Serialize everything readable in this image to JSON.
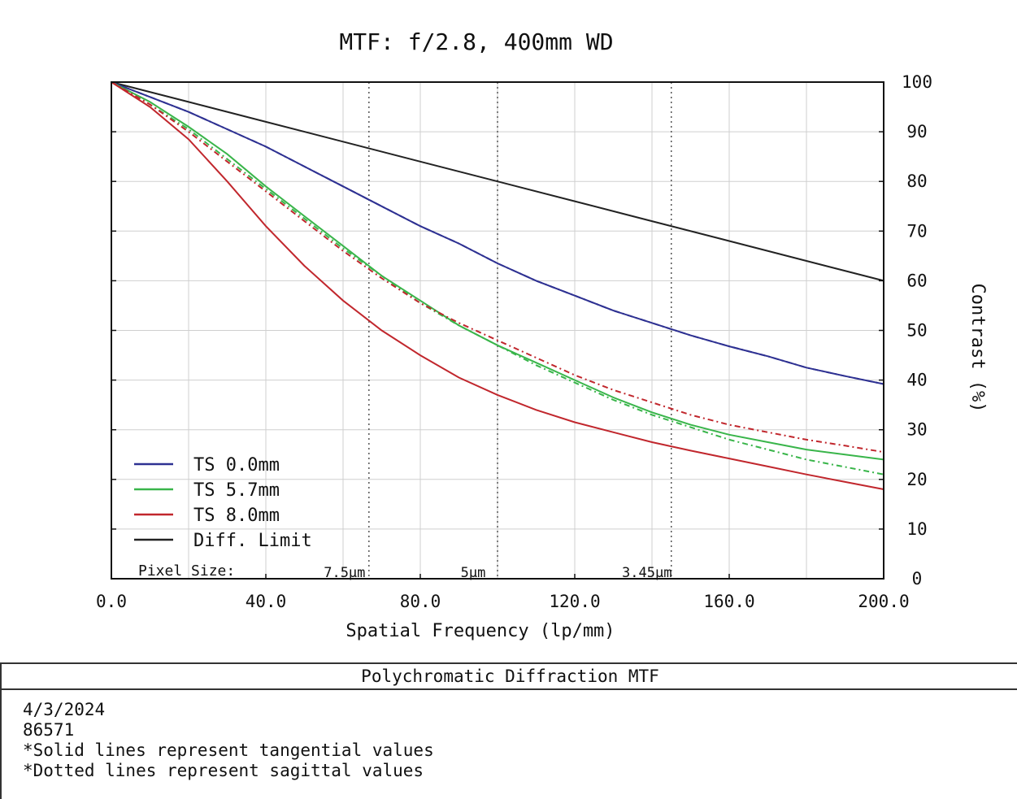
{
  "chart_data": {
    "type": "line",
    "title": "MTF: f/2.8, 400mm WD",
    "xlabel": "Spatial Frequency (lp/mm)",
    "ylabel": "Contrast (%)",
    "xlim": [
      0,
      200
    ],
    "ylim": [
      0,
      100
    ],
    "x_ticks": [
      "0.0",
      "40.0",
      "80.0",
      "120.0",
      "160.0",
      "200.0"
    ],
    "y_ticks": [
      "0",
      "10",
      "20",
      "30",
      "40",
      "50",
      "60",
      "70",
      "80",
      "90",
      "100"
    ],
    "grid": true,
    "legend_position": "bottom-left",
    "pixel_size_label": "Pixel Size:",
    "pixel_markers": [
      {
        "x": 66.7,
        "label": "7.5µm"
      },
      {
        "x": 100,
        "label": "5µm"
      },
      {
        "x": 145,
        "label": "3.45µm"
      }
    ],
    "colors": {
      "blue": "#2e3192",
      "green": "#39b54a",
      "red": "#c1272d",
      "black": "#222222"
    },
    "legend": [
      {
        "label": "TS 0.0mm",
        "color": "#2e3192"
      },
      {
        "label": "TS 5.7mm",
        "color": "#39b54a"
      },
      {
        "label": "TS 8.0mm",
        "color": "#c1272d"
      },
      {
        "label": "Diff. Limit",
        "color": "#222222"
      }
    ],
    "series": [
      {
        "name": "Diff. Limit",
        "color": "#222222",
        "dash": false,
        "x": [
          0,
          20,
          40,
          60,
          80,
          100,
          120,
          140,
          160,
          180,
          200
        ],
        "y": [
          100,
          96,
          92,
          88,
          84,
          80,
          76,
          72,
          68,
          64,
          60
        ]
      },
      {
        "name": "TS 0.0mm",
        "color": "#2e3192",
        "dash": false,
        "x": [
          0,
          10,
          20,
          30,
          40,
          50,
          60,
          70,
          80,
          90,
          100,
          110,
          120,
          130,
          140,
          150,
          160,
          170,
          180,
          190,
          200
        ],
        "y": [
          100,
          97,
          94,
          90.5,
          87,
          83,
          79,
          75,
          71,
          67.5,
          63.5,
          60,
          57,
          54,
          51.5,
          49,
          46.8,
          44.8,
          42.5,
          40.8,
          39.2
        ]
      },
      {
        "name": "TS 0.0mm",
        "color": "#2e3192",
        "dash": true,
        "x": [
          0,
          10,
          20,
          30,
          40,
          50,
          60,
          70,
          80,
          90,
          100,
          110,
          120,
          130,
          140,
          150,
          160,
          170,
          180,
          190,
          200
        ],
        "y": [
          100,
          97,
          94,
          90.5,
          87,
          83,
          79,
          75,
          71,
          67.5,
          63.5,
          60,
          57,
          54,
          51.5,
          49,
          46.8,
          44.8,
          42.5,
          40.8,
          39.2
        ]
      },
      {
        "name": "TS 5.7mm",
        "color": "#39b54a",
        "dash": false,
        "x": [
          0,
          10,
          20,
          30,
          40,
          50,
          60,
          70,
          80,
          90,
          100,
          110,
          120,
          130,
          140,
          150,
          160,
          170,
          180,
          190,
          200
        ],
        "y": [
          100,
          96,
          91,
          85.5,
          79,
          73,
          67,
          61,
          56,
          51,
          47,
          43.5,
          40,
          36.5,
          33.5,
          31,
          29,
          27.5,
          26,
          25,
          24
        ]
      },
      {
        "name": "TS 5.7mm",
        "color": "#39b54a",
        "dash": true,
        "x": [
          0,
          10,
          20,
          30,
          40,
          50,
          60,
          70,
          80,
          90,
          100,
          110,
          120,
          130,
          140,
          150,
          160,
          170,
          180,
          190,
          200
        ],
        "y": [
          100,
          95.5,
          90.5,
          84.5,
          78.5,
          72.5,
          66.5,
          61,
          55.5,
          51,
          47,
          43,
          39.5,
          36,
          33,
          30.5,
          28,
          26,
          24,
          22.5,
          21
        ]
      },
      {
        "name": "TS 8.0mm",
        "color": "#c1272d",
        "dash": false,
        "x": [
          0,
          10,
          20,
          30,
          40,
          50,
          60,
          70,
          80,
          90,
          100,
          110,
          120,
          130,
          140,
          150,
          160,
          170,
          180,
          190,
          200
        ],
        "y": [
          100,
          95,
          88.5,
          80,
          71,
          63,
          56,
          50,
          45,
          40.5,
          37,
          34,
          31.5,
          29.5,
          27.5,
          25.8,
          24.2,
          22.6,
          21,
          19.5,
          18
        ]
      },
      {
        "name": "TS 8.0mm",
        "color": "#c1272d",
        "dash": true,
        "x": [
          0,
          10,
          20,
          30,
          40,
          50,
          60,
          70,
          80,
          90,
          100,
          110,
          120,
          130,
          140,
          150,
          160,
          170,
          180,
          190,
          200
        ],
        "y": [
          100,
          95.5,
          90,
          84,
          78,
          72,
          66,
          60.5,
          55.5,
          51.5,
          48,
          44.5,
          41,
          38,
          35.5,
          33,
          31,
          29.5,
          28,
          26.8,
          25.5
        ]
      }
    ]
  },
  "panel": {
    "title": "Polychromatic Diffraction MTF",
    "lines": [
      "4/3/2024",
      "86571",
      "*Solid lines represent tangential values",
      "*Dotted lines represent sagittal values"
    ]
  }
}
